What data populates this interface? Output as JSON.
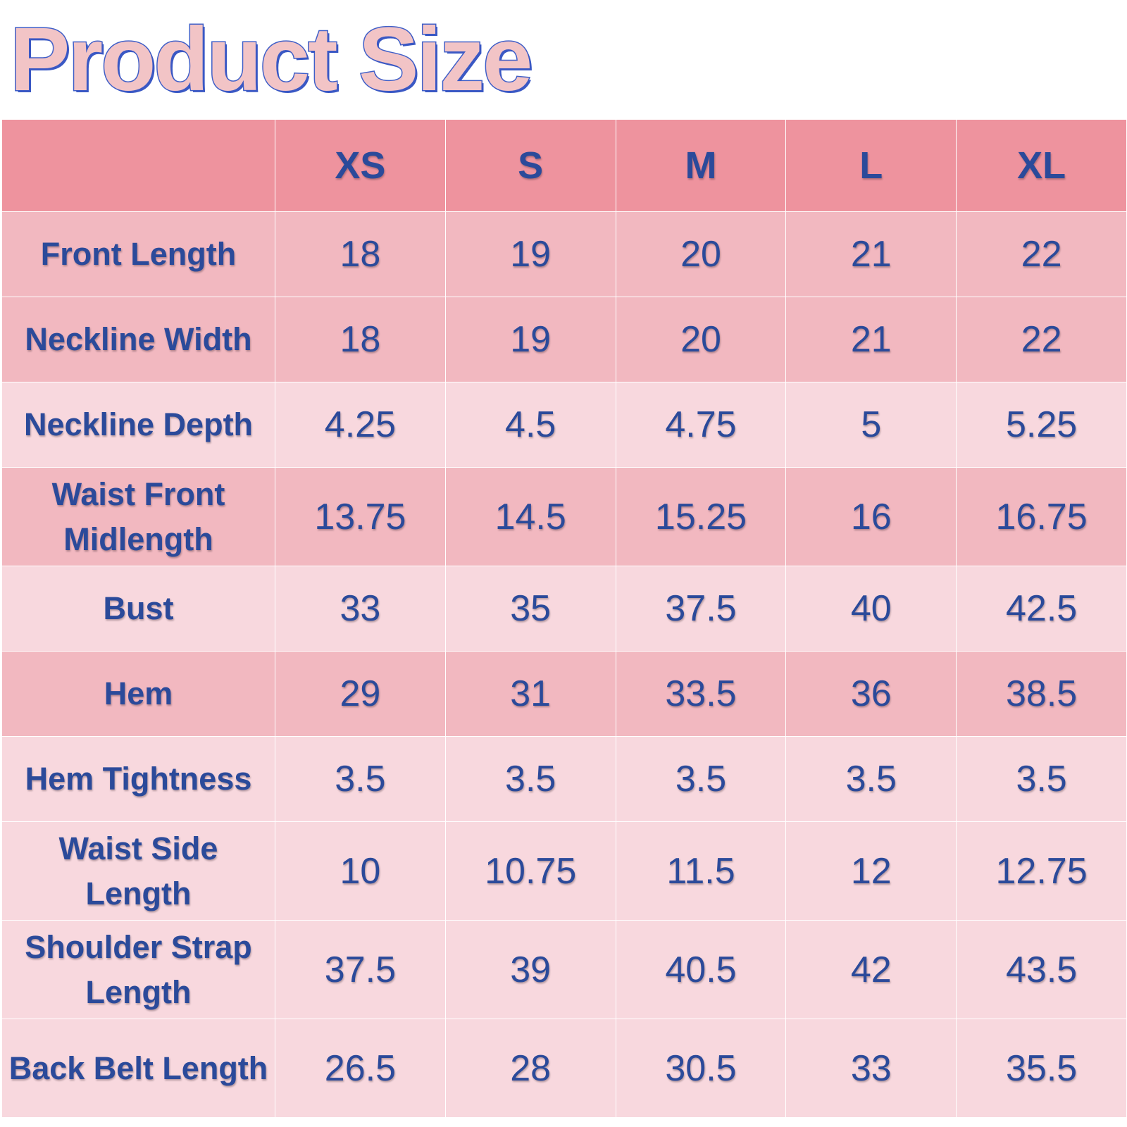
{
  "title": "Product Size",
  "table": {
    "corner": "",
    "sizes": [
      "XS",
      "S",
      "M",
      "L",
      "XL"
    ],
    "rows": [
      {
        "label": "Front Length",
        "values": [
          "18",
          "19",
          "20",
          "21",
          "22"
        ],
        "shade": "mid"
      },
      {
        "label": "Neckline Width",
        "values": [
          "18",
          "19",
          "20",
          "21",
          "22"
        ],
        "shade": "mid"
      },
      {
        "label": "Neckline Depth",
        "values": [
          "4.25",
          "4.5",
          "4.75",
          "5",
          "5.25"
        ],
        "shade": "light"
      },
      {
        "label": "Waist Front Midlength",
        "values": [
          "13.75",
          "14.5",
          "15.25",
          "16",
          "16.75"
        ],
        "shade": "mid"
      },
      {
        "label": "Bust",
        "values": [
          "33",
          "35",
          "37.5",
          "40",
          "42.5"
        ],
        "shade": "light"
      },
      {
        "label": "Hem",
        "values": [
          "29",
          "31",
          "33.5",
          "36",
          "38.5"
        ],
        "shade": "mid"
      },
      {
        "label": "Hem Tightness",
        "values": [
          "3.5",
          "3.5",
          "3.5",
          "3.5",
          "3.5"
        ],
        "shade": "light"
      },
      {
        "label": "Waist Side Length",
        "values": [
          "10",
          "10.75",
          "11.5",
          "12",
          "12.75"
        ],
        "shade": "light"
      },
      {
        "label": "Shoulder Strap Length",
        "values": [
          "37.5",
          "39",
          "40.5",
          "42",
          "43.5"
        ],
        "shade": "light"
      },
      {
        "label": "Back Belt Length",
        "values": [
          "26.5",
          "28",
          "30.5",
          "33",
          "35.5"
        ],
        "shade": "light"
      }
    ]
  },
  "colors": {
    "header_bg": "#ee939e",
    "row_mid_bg": "#f2b8c0",
    "row_light_bg": "#f8d8de",
    "text": "#2b4a9a",
    "title_fill": "#f2c4c6",
    "title_outline": "#3f5fc8"
  }
}
